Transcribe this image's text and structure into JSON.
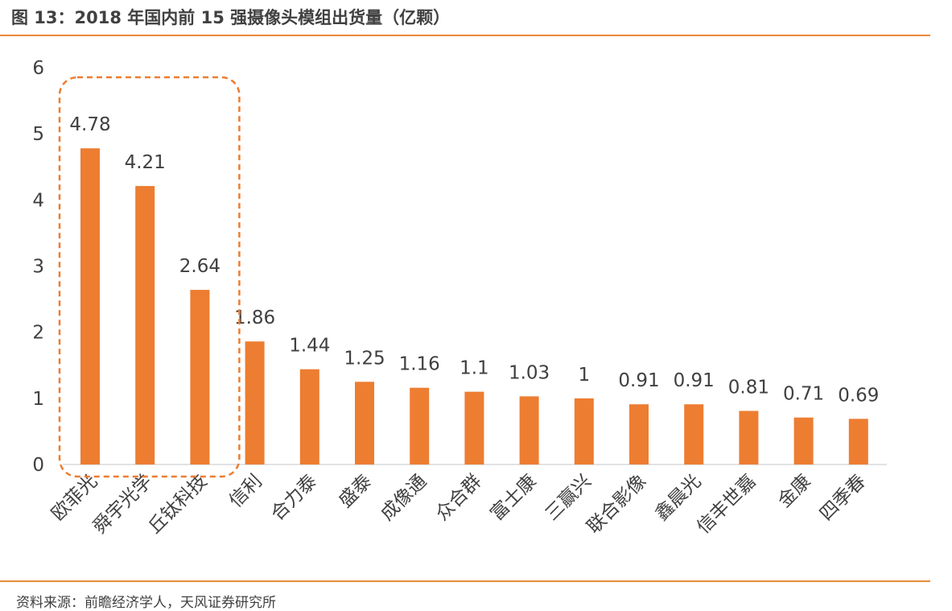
{
  "figure": {
    "title": "图 13：2018 年国内前 15 强摄像头模组出货量（亿颗）",
    "source": "资料来源：前瞻经济学人，天风证券研究所"
  },
  "colors": {
    "bar": "#ED7D31",
    "accent_rule": "#E98A3A",
    "highlight_box": "#ED7D31",
    "axis": "#D9D9D9",
    "text": "#404040"
  },
  "chart_data": {
    "type": "bar",
    "title": "",
    "xlabel": "",
    "ylabel": "",
    "ylim": [
      0,
      6
    ],
    "yticks": [
      0,
      1,
      2,
      3,
      4,
      5,
      6
    ],
    "grid": false,
    "categories": [
      "欧菲光",
      "舜宇光学",
      "丘钛科技",
      "信利",
      "合力泰",
      "盛泰",
      "成像通",
      "众合群",
      "富士康",
      "三赢兴",
      "联合影像",
      "鑫晨光",
      "信丰世嘉",
      "金康",
      "四季春"
    ],
    "values": [
      4.78,
      4.21,
      2.64,
      1.86,
      1.44,
      1.25,
      1.16,
      1.1,
      1.03,
      1,
      0.91,
      0.91,
      0.81,
      0.71,
      0.69
    ],
    "value_labels": [
      "4.78",
      "4.21",
      "2.64",
      "1.86",
      "1.44",
      "1.25",
      "1.16",
      "1.1",
      "1.03",
      "1",
      "0.91",
      "0.91",
      "0.81",
      "0.71",
      "0.69"
    ],
    "highlight": {
      "style": "dashed rounded box",
      "categories": [
        "欧菲光",
        "舜宇光学",
        "丘钛科技"
      ]
    }
  }
}
